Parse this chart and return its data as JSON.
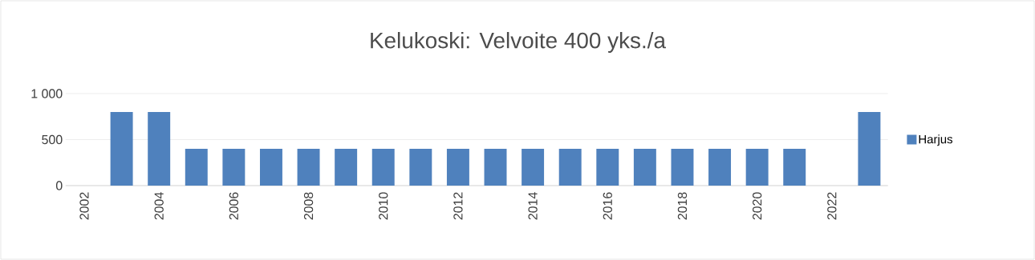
{
  "chart_data": {
    "type": "bar",
    "title": "Kelukoski: Velvoite 400 yks./a",
    "categories": [
      "2002",
      null,
      "2004",
      null,
      "2006",
      null,
      "2008",
      null,
      "2010",
      null,
      "2012",
      null,
      "2014",
      null,
      "2016",
      null,
      "2018",
      null,
      "2020",
      null,
      "2022",
      null
    ],
    "series": [
      {
        "name": "Harjus",
        "color": "#4f81bd",
        "values": [
          null,
          800,
          800,
          400,
          400,
          400,
          400,
          400,
          400,
          400,
          400,
          400,
          400,
          400,
          400,
          400,
          400,
          400,
          400,
          400,
          null,
          800
        ]
      }
    ],
    "ylim": [
      0,
      1000
    ],
    "yticks": [
      0,
      500,
      {
        "value": 1000,
        "label": "1 000"
      }
    ],
    "grid": "y",
    "legend": "right"
  }
}
